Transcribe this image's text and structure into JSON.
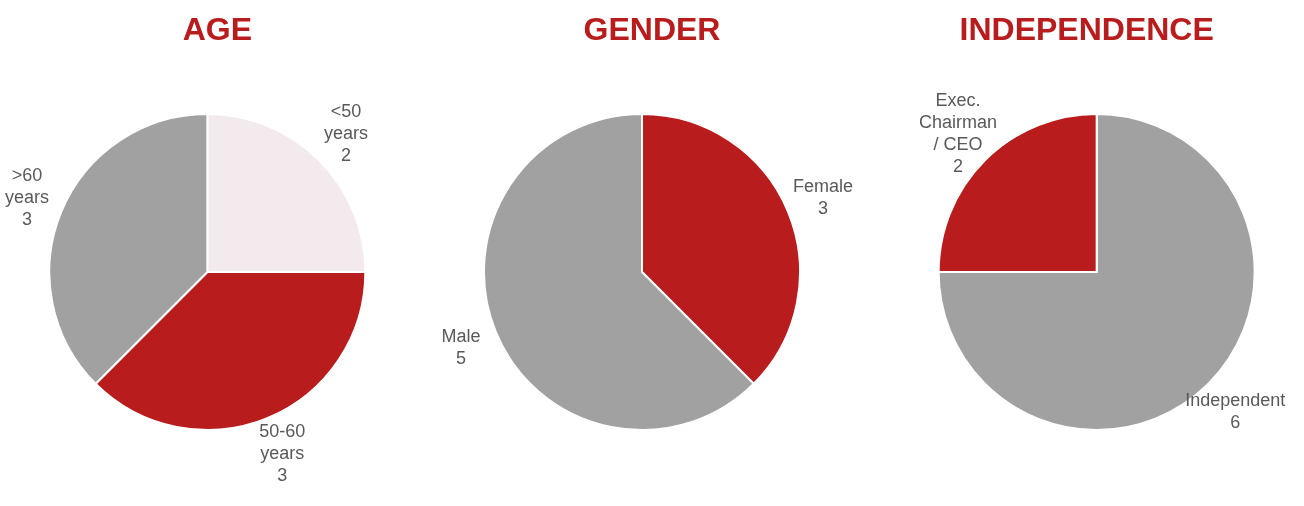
{
  "chart_data": [
    {
      "type": "pie",
      "title": "AGE",
      "categories": [
        "<50 years",
        "50-60 years",
        ">60 years"
      ],
      "values": [
        2,
        3,
        3
      ],
      "colors": [
        "#f3eaed",
        "#b81c1c",
        "#a0a1a0"
      ],
      "data_labels": true
    },
    {
      "type": "pie",
      "title": "GENDER",
      "categories": [
        "Female",
        "Male"
      ],
      "values": [
        3,
        5
      ],
      "colors": [
        "#b81c1c",
        "#a0a1a0"
      ],
      "data_labels": true
    },
    {
      "type": "pie",
      "title": "INDEPENDENCE",
      "categories": [
        "Independent",
        "Exec. Chairman / CEO"
      ],
      "values": [
        6,
        2
      ],
      "colors": [
        "#a0a1a0",
        "#b81c1c"
      ],
      "data_labels": true
    }
  ]
}
